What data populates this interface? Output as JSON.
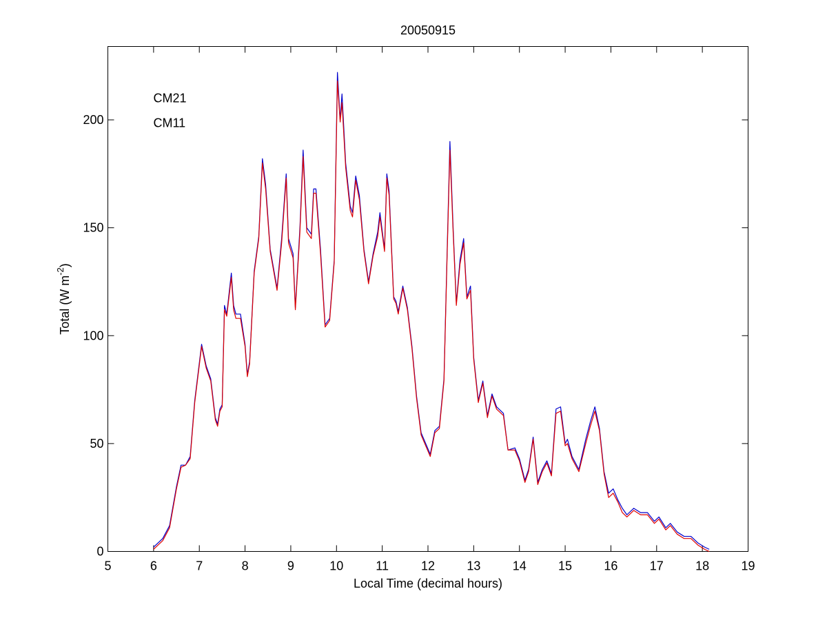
{
  "chart_data": {
    "type": "line",
    "title": "20050915",
    "x_label": "Local Time (decimal hours)",
    "y_label": {
      "text": "Total (W m",
      "superscript": "-2",
      "suffix": ")"
    },
    "x": [
      6.0,
      6.2,
      6.35,
      6.5,
      6.6,
      6.7,
      6.8,
      6.9,
      7.05,
      7.15,
      7.25,
      7.35,
      7.4,
      7.45,
      7.5,
      7.55,
      7.6,
      7.7,
      7.75,
      7.8,
      7.9,
      8.0,
      8.05,
      8.1,
      8.2,
      8.3,
      8.38,
      8.45,
      8.55,
      8.7,
      8.8,
      8.9,
      8.95,
      9.05,
      9.1,
      9.2,
      9.27,
      9.35,
      9.45,
      9.5,
      9.55,
      9.65,
      9.75,
      9.85,
      9.95,
      10.02,
      10.08,
      10.12,
      10.2,
      10.3,
      10.35,
      10.42,
      10.5,
      10.6,
      10.7,
      10.8,
      10.9,
      10.95,
      11.05,
      11.1,
      11.15,
      11.25,
      11.3,
      11.35,
      11.45,
      11.55,
      11.65,
      11.75,
      11.85,
      11.95,
      12.05,
      12.15,
      12.25,
      12.35,
      12.42,
      12.48,
      12.55,
      12.62,
      12.7,
      12.78,
      12.85,
      12.93,
      13.0,
      13.1,
      13.2,
      13.3,
      13.4,
      13.5,
      13.65,
      13.75,
      13.9,
      14.0,
      14.12,
      14.2,
      14.3,
      14.4,
      14.5,
      14.6,
      14.7,
      14.8,
      14.9,
      15.0,
      15.05,
      15.15,
      15.3,
      15.45,
      15.55,
      15.65,
      15.75,
      15.85,
      15.95,
      16.05,
      16.15,
      16.25,
      16.35,
      16.5,
      16.65,
      16.8,
      16.95,
      17.05,
      17.2,
      17.3,
      17.45,
      17.6,
      17.75,
      17.9,
      18.05,
      18.15
    ],
    "series": [
      {
        "name": "CM21",
        "color": "#0000cc",
        "values": [
          2,
          6,
          12,
          30,
          40,
          40,
          44,
          70,
          96,
          86,
          80,
          62,
          59,
          66,
          68,
          114,
          110,
          129,
          114,
          110,
          110,
          96,
          82,
          88,
          130,
          146,
          182,
          170,
          140,
          122,
          145,
          175,
          145,
          138,
          113,
          150,
          186,
          150,
          147,
          168,
          168,
          140,
          105,
          108,
          135,
          222,
          200,
          212,
          180,
          160,
          157,
          174,
          165,
          140,
          125,
          138,
          148,
          157,
          140,
          175,
          167,
          118,
          116,
          111,
          123,
          113,
          95,
          72,
          55,
          50,
          45,
          56,
          58,
          80,
          140,
          190,
          150,
          115,
          135,
          145,
          118,
          123,
          90,
          70,
          79,
          63,
          73,
          67,
          64,
          47,
          48,
          43,
          33,
          38,
          53,
          32,
          38,
          42,
          36,
          66,
          67,
          50,
          52,
          44,
          38,
          52,
          60,
          67,
          57,
          37,
          27,
          29,
          24,
          20,
          17,
          20,
          18,
          18,
          14,
          16,
          11,
          13,
          9,
          7,
          7,
          4,
          2,
          1
        ]
      },
      {
        "name": "CM11",
        "color": "#dd0000",
        "values": [
          1,
          5,
          11,
          29,
          39,
          40,
          43,
          69,
          95,
          85,
          79,
          61,
          58,
          65,
          67,
          112,
          109,
          127,
          112,
          108,
          108,
          95,
          81,
          87,
          129,
          145,
          180,
          168,
          139,
          121,
          143,
          173,
          143,
          136,
          112,
          148,
          183,
          148,
          145,
          166,
          166,
          138,
          104,
          107,
          134,
          218,
          199,
          208,
          178,
          158,
          155,
          172,
          163,
          139,
          124,
          137,
          146,
          155,
          139,
          173,
          165,
          117,
          115,
          110,
          122,
          112,
          94,
          71,
          54,
          49,
          44,
          55,
          57,
          79,
          138,
          186,
          148,
          114,
          133,
          143,
          117,
          121,
          89,
          69,
          78,
          62,
          72,
          66,
          63,
          47,
          47,
          42,
          32,
          37,
          52,
          31,
          37,
          41,
          35,
          64,
          65,
          49,
          50,
          43,
          37,
          50,
          58,
          65,
          56,
          36,
          25,
          27,
          23,
          18,
          16,
          19,
          17,
          17,
          13,
          15,
          10,
          12,
          8,
          6,
          6,
          3,
          1,
          0
        ]
      }
    ],
    "xlim": [
      5,
      19
    ],
    "xticks": [
      5,
      6,
      7,
      8,
      9,
      10,
      11,
      12,
      13,
      14,
      15,
      16,
      17,
      18,
      19
    ],
    "ylim": [
      0,
      234
    ],
    "yticks": [
      0,
      50,
      100,
      150,
      200
    ],
    "grid": false,
    "legend": "upper left"
  }
}
